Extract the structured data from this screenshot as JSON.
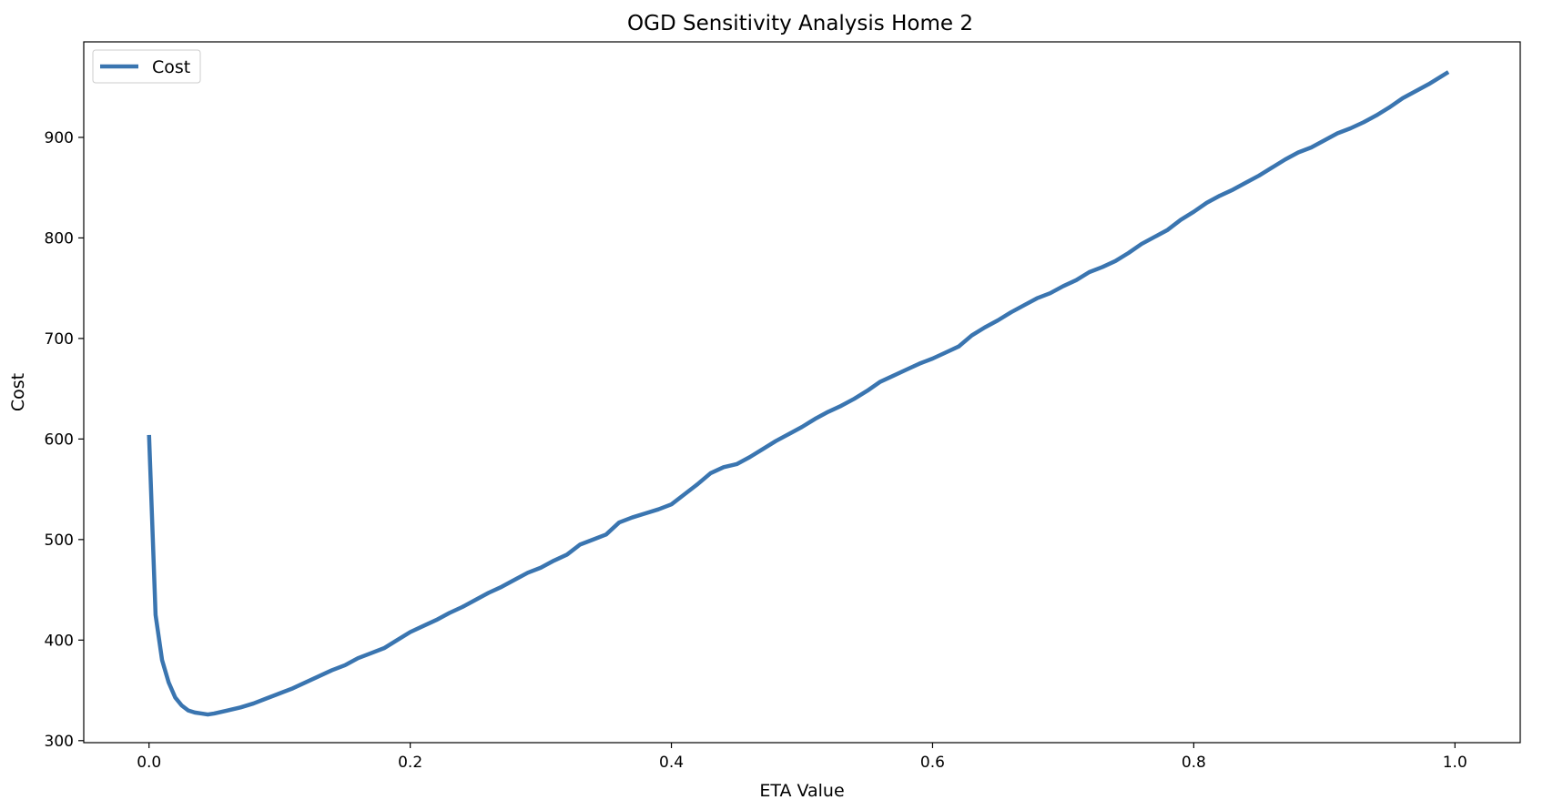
{
  "chart_data": {
    "type": "line",
    "title": "OGD Sensitivity Analysis Home 2",
    "xlabel": "ETA Value",
    "ylabel": "Cost",
    "xlim": [
      -0.05,
      1.05
    ],
    "ylim": [
      298,
      995
    ],
    "xticks": [
      0.0,
      0.2,
      0.4,
      0.6,
      0.8,
      1.0
    ],
    "xtick_labels": [
      "0.0",
      "0.2",
      "0.4",
      "0.6",
      "0.8",
      "1.0"
    ],
    "yticks": [
      300,
      400,
      500,
      600,
      700,
      800,
      900
    ],
    "ytick_labels": [
      "300",
      "400",
      "500",
      "600",
      "700",
      "800",
      "900"
    ],
    "grid": false,
    "legend": {
      "position": "upper-left",
      "entries": [
        "Cost"
      ]
    },
    "series": [
      {
        "name": "Cost",
        "color": "#3a75b0",
        "x": [
          0.0,
          0.005,
          0.01,
          0.015,
          0.02,
          0.025,
          0.03,
          0.035,
          0.04,
          0.045,
          0.05,
          0.06,
          0.07,
          0.08,
          0.09,
          0.1,
          0.11,
          0.12,
          0.13,
          0.14,
          0.15,
          0.16,
          0.17,
          0.18,
          0.19,
          0.2,
          0.21,
          0.22,
          0.23,
          0.24,
          0.25,
          0.26,
          0.27,
          0.28,
          0.29,
          0.3,
          0.31,
          0.32,
          0.33,
          0.34,
          0.35,
          0.36,
          0.37,
          0.38,
          0.39,
          0.4,
          0.41,
          0.42,
          0.43,
          0.44,
          0.45,
          0.46,
          0.47,
          0.48,
          0.49,
          0.5,
          0.51,
          0.52,
          0.53,
          0.54,
          0.55,
          0.56,
          0.57,
          0.58,
          0.59,
          0.6,
          0.61,
          0.62,
          0.63,
          0.64,
          0.65,
          0.66,
          0.67,
          0.68,
          0.69,
          0.7,
          0.71,
          0.72,
          0.73,
          0.74,
          0.75,
          0.76,
          0.77,
          0.78,
          0.79,
          0.8,
          0.81,
          0.82,
          0.83,
          0.84,
          0.85,
          0.86,
          0.87,
          0.88,
          0.89,
          0.9,
          0.91,
          0.92,
          0.93,
          0.94,
          0.95,
          0.96,
          0.97,
          0.98,
          0.99,
          0.995
        ],
        "y": [
          604,
          425,
          380,
          358,
          343,
          335,
          330,
          328,
          327,
          326,
          327,
          330,
          333,
          337,
          342,
          347,
          352,
          358,
          364,
          370,
          375,
          382,
          387,
          392,
          400,
          408,
          414,
          420,
          427,
          433,
          440,
          447,
          453,
          460,
          467,
          472,
          479,
          485,
          495,
          500,
          505,
          517,
          522,
          526,
          530,
          535,
          545,
          555,
          566,
          572,
          575,
          582,
          590,
          598,
          605,
          612,
          620,
          627,
          633,
          640,
          648,
          657,
          663,
          669,
          675,
          680,
          686,
          692,
          703,
          711,
          718,
          726,
          733,
          740,
          745,
          752,
          758,
          766,
          771,
          777,
          785,
          794,
          801,
          808,
          818,
          826,
          835,
          842,
          848,
          855,
          862,
          870,
          878,
          885,
          890,
          897,
          904,
          909,
          915,
          922,
          930,
          939,
          946,
          953,
          961,
          965
        ]
      }
    ]
  }
}
